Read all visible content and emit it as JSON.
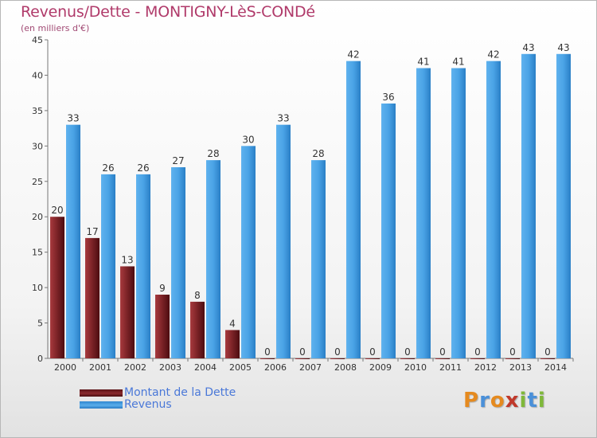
{
  "header": {
    "title": "Revenus/Dette - MONTIGNY-LèS-CONDé",
    "subtitle": "(en milliers d'€)"
  },
  "colors": {
    "dette": "#8a2a2e",
    "revenus": "#4aa3e6",
    "title": "#b03a6a",
    "legend_text": "#4a78d8"
  },
  "legend": {
    "dette_label": "Montant de la Dette",
    "revenus_label": "Revenus"
  },
  "logo": {
    "letters": [
      "P",
      "r",
      "o",
      "x",
      "i",
      "t",
      "i"
    ],
    "letter_colors": [
      "#e58a1f",
      "#4a90d9",
      "#e58a1f",
      "#c0392b",
      "#7fb83a",
      "#4a90d9",
      "#7fb83a"
    ]
  },
  "chart_data": {
    "type": "bar",
    "categories": [
      "2000",
      "2001",
      "2002",
      "2003",
      "2004",
      "2005",
      "2006",
      "2007",
      "2008",
      "2009",
      "2010",
      "2011",
      "2012",
      "2013",
      "2014"
    ],
    "series": [
      {
        "name": "Montant de la Dette",
        "values": [
          20,
          17,
          13,
          9,
          8,
          4,
          0,
          0,
          0,
          0,
          0,
          0,
          0,
          0,
          0
        ]
      },
      {
        "name": "Revenus",
        "values": [
          33,
          26,
          26,
          27,
          28,
          30,
          33,
          28,
          42,
          36,
          41,
          41,
          42,
          43,
          43
        ]
      }
    ],
    "ylim": [
      0,
      45
    ],
    "yticks": [
      0,
      5,
      10,
      15,
      20,
      25,
      30,
      35,
      40,
      45
    ],
    "grid": false,
    "legend_position": "bottom-left"
  }
}
